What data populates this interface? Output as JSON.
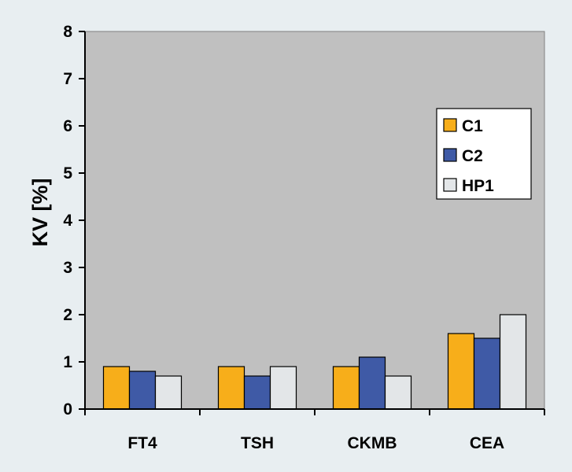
{
  "chart_data": {
    "type": "bar",
    "title": "",
    "xlabel": "",
    "ylabel": "KV [%]",
    "ylim": [
      0,
      8
    ],
    "yticks": [
      "0",
      "1",
      "2",
      "3",
      "4",
      "5",
      "6",
      "7",
      "8"
    ],
    "categories": [
      "FT4",
      "TSH",
      "CKMB",
      "CEA"
    ],
    "series": [
      {
        "name": "C1",
        "values": [
          0.9,
          0.9,
          0.9,
          1.6
        ],
        "color": "#f7ae1a"
      },
      {
        "name": "C2",
        "values": [
          0.8,
          0.7,
          1.1,
          1.5
        ],
        "color": "#3f5aa6"
      },
      {
        "name": "HP1",
        "values": [
          0.7,
          0.9,
          0.7,
          2.0
        ],
        "color": "#e3e6e8"
      }
    ],
    "grid": false,
    "legend_position": "top-right",
    "colors": {
      "page_background": "#e8eef1",
      "plot_background": "#c0c0c0",
      "axis": "#000000"
    }
  }
}
